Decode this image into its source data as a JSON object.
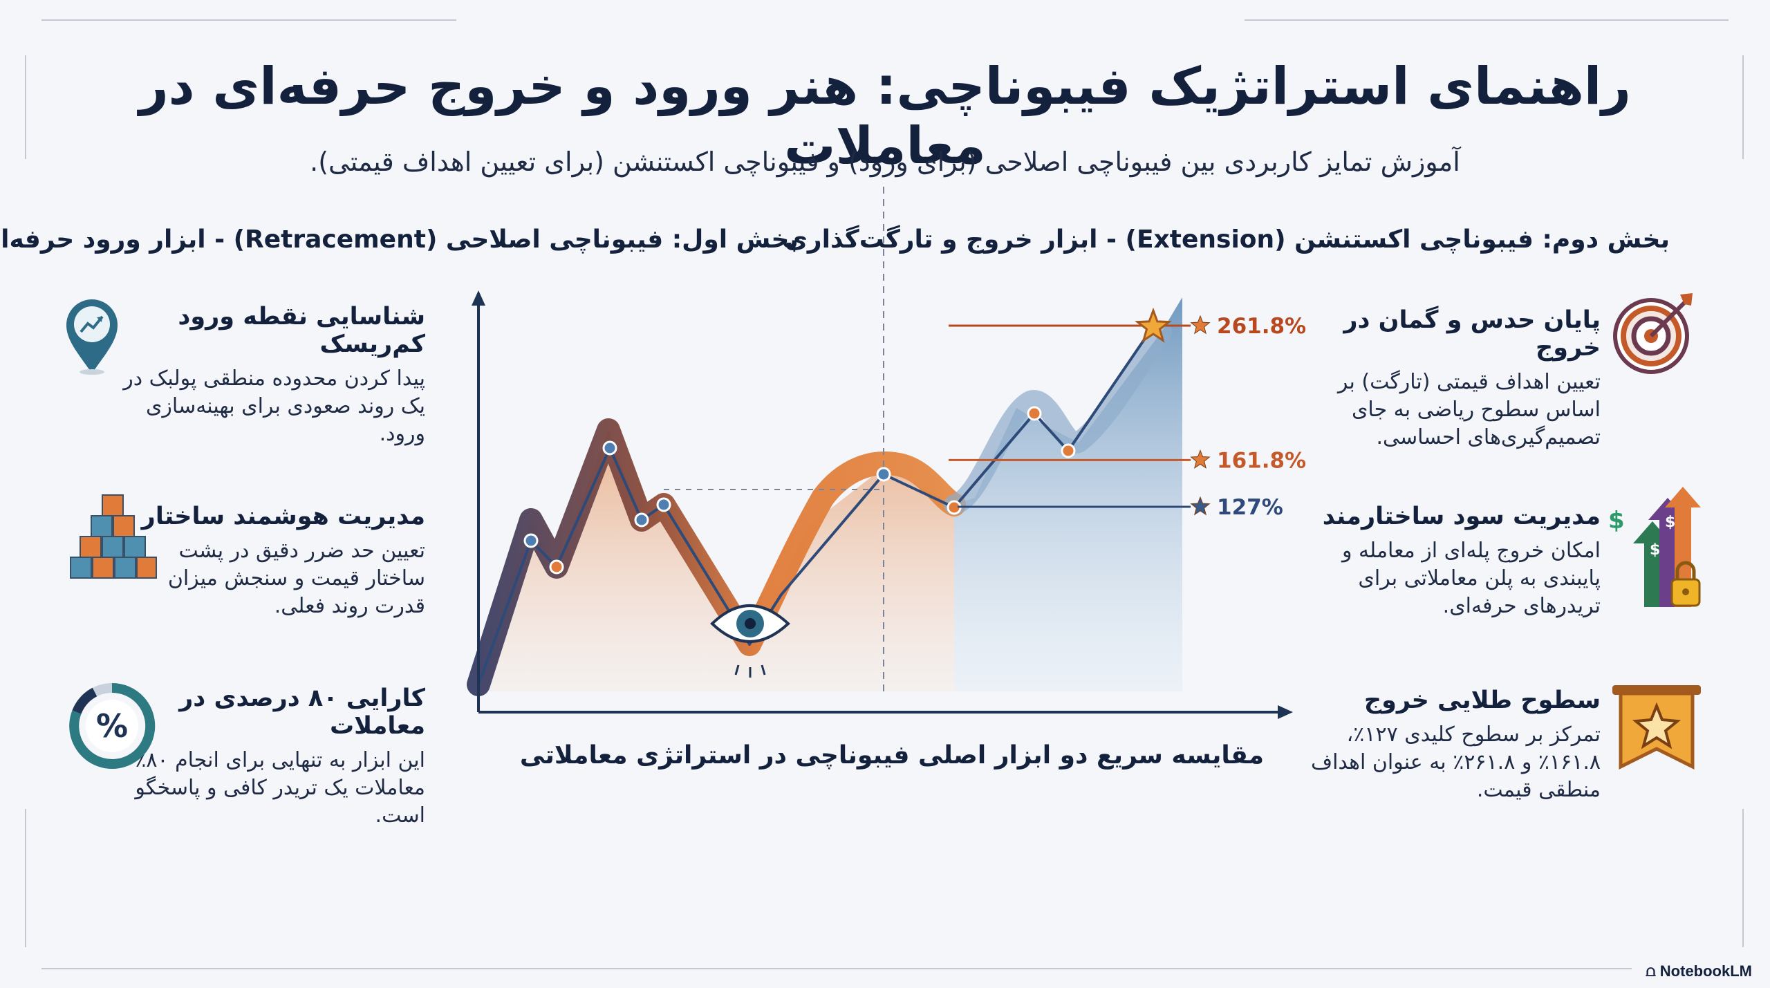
{
  "title": "راهنمای استراتژیک فیبوناچی: هنر ورود و خروج حرفه‌ای در معاملات",
  "subtitle": "آموزش تمایز کاربردی بین فیبوناچی اصلاحی (برای ورود) و فیبوناچی اکستنشن (برای تعیین اهداف قیمتی).",
  "sections": {
    "left_heading": "بخش اول: فیبوناچی اصلاحی (Retracement) - ابزار ورود حرفه‌ای",
    "right_heading": "بخش دوم: فیبوناچی اکستنشن (Extension) - ابزار خروج و تارگت‌گذاری"
  },
  "left_cards": [
    {
      "title": "شناسایی نقطه ورود کم‌ریسک",
      "text": "پیدا کردن محدوده منطقی پولبک در یک روند صعودی برای بهینه‌سازی ورود.",
      "icon": "map-pin-chart-icon"
    },
    {
      "title": "مدیریت هوشمند ساختار",
      "text": "تعیین حد ضرر دقیق در پشت ساختار قیمت و سنجش میزان قدرت روند فعلی.",
      "icon": "stacked-blocks-icon"
    },
    {
      "title": "کارایی ۸۰ درصدی در معاملات",
      "text": "این ابزار به تنهایی برای انجام ۸۰٪ معاملات یک تریدر کافی و پاسخگو است.",
      "icon": "percent-ring-icon",
      "badge": "%"
    }
  ],
  "right_cards": [
    {
      "title": "پایان حدس و گمان در خروج",
      "text": "تعیین اهداف قیمتی (تارگت) بر اساس سطوح ریاضی به جای تصمیم‌گیری‌های احساسی.",
      "icon": "target-arrow-icon"
    },
    {
      "title": "مدیریت سود ساختارمند",
      "text": "امکان خروج پله‌ای از معامله و پایبندی به پلن معاملاتی برای تریدرهای حرفه‌ای.",
      "icon": "growth-arrows-lock-icon"
    },
    {
      "title": "سطوح طلایی خروج",
      "text": "تمرکز بر سطوح کلیدی ۱۲۷٪، ۱۶۱.۸٪ و ۲۶۱.۸٪ به عنوان اهداف منطقی قیمت.",
      "icon": "ribbon-star-icon"
    }
  ],
  "chart_data": {
    "type": "line",
    "title": "",
    "xlabel": "",
    "ylabel": "",
    "extension_levels": [
      {
        "label": "127%",
        "value": 127,
        "color": "#2f4a7a"
      },
      {
        "label": "161.8%",
        "value": 161.8,
        "color": "#c45a2a"
      },
      {
        "label": "261.8%",
        "value": 261.8,
        "color": "#b8481e"
      }
    ],
    "caption": "مقایسه سریع دو ابزار اصلی فیبوناچی در استراتژی معاملاتی",
    "colors": {
      "retracement": "#e07b39",
      "extension": "#4f7fb0",
      "axis": "#1f3354",
      "trend": "#2e4a78"
    }
  },
  "brand": "NotebookLM"
}
